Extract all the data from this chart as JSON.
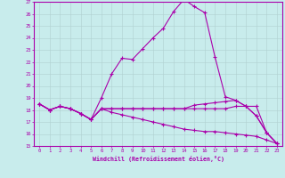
{
  "xlabel": "Windchill (Refroidissement éolien,°C)",
  "background_color": "#c8ecec",
  "line_color": "#aa00aa",
  "grid_color": "#b0d0d0",
  "xlim": [
    -0.5,
    23.5
  ],
  "ylim": [
    15,
    27
  ],
  "yticks": [
    15,
    16,
    17,
    18,
    19,
    20,
    21,
    22,
    23,
    24,
    25,
    26,
    27
  ],
  "xticks": [
    0,
    1,
    2,
    3,
    4,
    5,
    6,
    7,
    8,
    9,
    10,
    11,
    12,
    13,
    14,
    15,
    16,
    17,
    18,
    19,
    20,
    21,
    22,
    23
  ],
  "hours": [
    0,
    1,
    2,
    3,
    4,
    5,
    6,
    7,
    8,
    9,
    10,
    11,
    12,
    13,
    14,
    15,
    16,
    17,
    18,
    19,
    20,
    21,
    22,
    23
  ],
  "line1": [
    18.5,
    18.0,
    18.3,
    18.1,
    17.7,
    17.2,
    19.0,
    21.0,
    22.3,
    22.2,
    23.1,
    24.0,
    24.8,
    26.2,
    27.2,
    26.6,
    26.1,
    22.4,
    19.1,
    18.8,
    18.3,
    17.5,
    16.1,
    15.2
  ],
  "line2": [
    18.5,
    18.0,
    18.3,
    18.1,
    17.7,
    17.2,
    18.1,
    18.1,
    18.1,
    18.1,
    18.1,
    18.1,
    18.1,
    18.1,
    18.1,
    18.1,
    18.1,
    18.1,
    18.1,
    18.3,
    18.3,
    18.3,
    16.1,
    15.2
  ],
  "line3": [
    18.5,
    18.0,
    18.3,
    18.1,
    17.7,
    17.2,
    18.1,
    17.8,
    17.6,
    17.4,
    17.2,
    17.0,
    16.8,
    16.6,
    16.4,
    16.3,
    16.2,
    16.2,
    16.1,
    16.0,
    15.9,
    15.8,
    15.5,
    15.2
  ],
  "line4": [
    18.5,
    18.0,
    18.3,
    18.1,
    17.7,
    17.2,
    18.1,
    18.1,
    18.1,
    18.1,
    18.1,
    18.1,
    18.1,
    18.1,
    18.1,
    18.4,
    18.5,
    18.6,
    18.7,
    18.8,
    18.3,
    17.5,
    16.1,
    15.2
  ]
}
